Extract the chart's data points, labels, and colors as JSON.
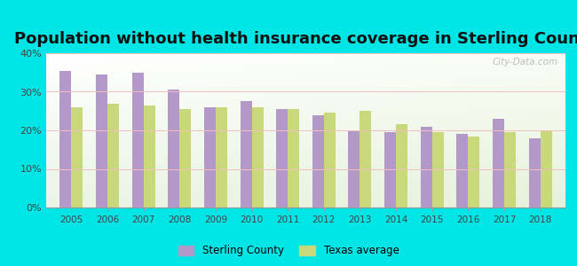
{
  "title": "Population without health insurance coverage in Sterling County",
  "years": [
    2005,
    2006,
    2007,
    2008,
    2009,
    2010,
    2011,
    2012,
    2013,
    2014,
    2015,
    2016,
    2017,
    2018
  ],
  "sterling_county": [
    35.5,
    34.5,
    35.0,
    30.5,
    26.0,
    27.5,
    25.5,
    24.0,
    20.0,
    19.5,
    21.0,
    19.0,
    23.0,
    18.0
  ],
  "texas_average": [
    26.0,
    27.0,
    26.5,
    25.5,
    26.0,
    26.0,
    25.5,
    24.5,
    25.0,
    21.5,
    19.5,
    18.5,
    19.5,
    20.0
  ],
  "sterling_color": "#b399c8",
  "texas_color": "#c8d87a",
  "background_outer": "#00e5e5",
  "ylim": [
    0,
    40
  ],
  "yticks": [
    0,
    10,
    20,
    30,
    40
  ],
  "bar_width": 0.32,
  "title_fontsize": 13.0,
  "legend_label_sterling": "Sterling County",
  "legend_label_texas": "Texas average",
  "watermark": "City-Data.com"
}
